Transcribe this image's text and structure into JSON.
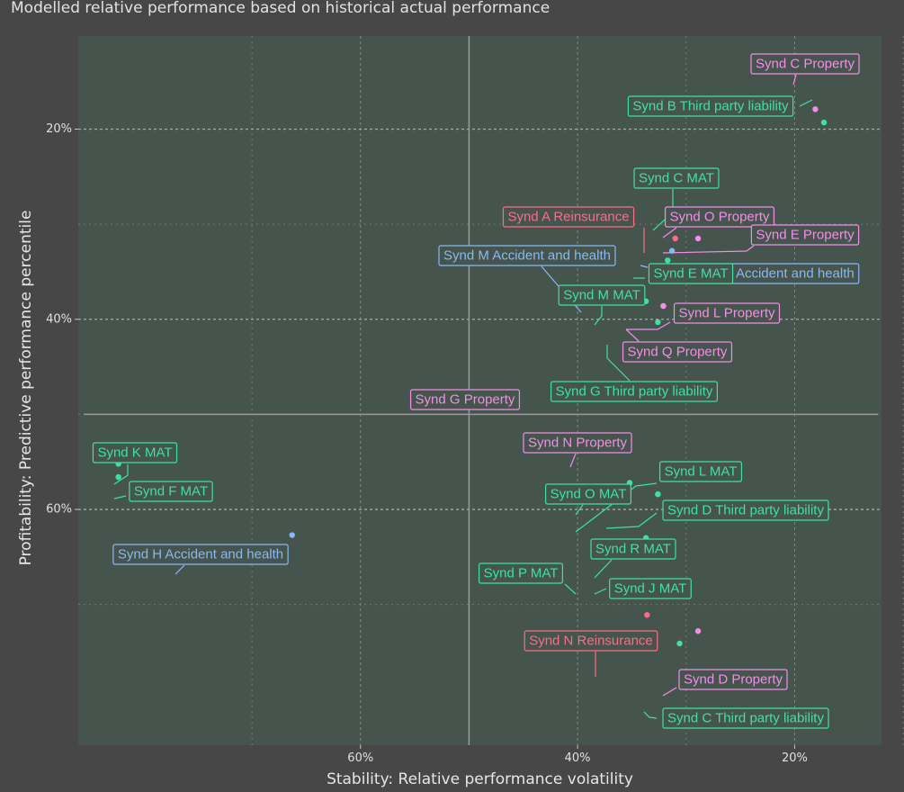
{
  "subtitle": "Modelled relative performance based on historical actual performance",
  "colors": {
    "background": "#474747",
    "panel": "#45554d",
    "grid": "#a9a9a9",
    "quadrant_line": "#9a9a9a",
    "MAT": "#3fe0a6",
    "Third party liability": "#3fe0a6",
    "Property": "#f28ee6",
    "Reinsurance": "#ff6b85",
    "Accident and health": "#8ab8f2"
  },
  "chart_data": {
    "type": "scatter",
    "title": "",
    "xlabel": "Stability: Relative performance volatility",
    "ylabel": "Profitability: Predictive performance percentile",
    "x_reversed": true,
    "y_reversed": true,
    "xlim": [
      86,
      12
    ],
    "ylim": [
      10.2,
      84.8
    ],
    "x_ticks": [
      60,
      40,
      20
    ],
    "x_tick_labels": [
      "60%",
      "40%",
      "20%"
    ],
    "y_ticks": [
      20,
      40,
      60
    ],
    "y_tick_labels": [
      "20%",
      "40%",
      "60%"
    ],
    "reference_lines": {
      "x": 50,
      "y": 50
    },
    "grid": "major dotted, minor dashed",
    "points": [
      {
        "label": "Synd C Property",
        "category": "Property",
        "x": 18.1,
        "y": 17.9
      },
      {
        "label": "Synd B Third party liability",
        "category": "Third party liability",
        "x": 17.3,
        "y": 19.3
      },
      {
        "label": "Synd C MAT",
        "category": "MAT",
        "x": 30.0,
        "y": 29.2
      },
      {
        "label": "Synd O Property",
        "category": "Property",
        "x": 28.9,
        "y": 29.7
      },
      {
        "label": "Synd A Reinsurance",
        "category": "Reinsurance",
        "x": 31.0,
        "y": 31.5
      },
      {
        "label": "Synd E Property",
        "category": "Property",
        "x": 28.9,
        "y": 31.5
      },
      {
        "label": "Synd M Accident and health",
        "category": "Accident and health",
        "x": 34.8,
        "y": 37.0
      },
      {
        "label": "Synd E Accident and health",
        "category": "Accident and health",
        "x": 31.3,
        "y": 32.8
      },
      {
        "label": "Synd E MAT",
        "category": "MAT",
        "x": 31.7,
        "y": 33.8
      },
      {
        "label": "Synd M MAT",
        "category": "MAT",
        "x": 33.7,
        "y": 38.1
      },
      {
        "label": "Synd L Property",
        "category": "Property",
        "x": 32.1,
        "y": 38.6
      },
      {
        "label": "Synd G Third party liability",
        "category": "Third party liability",
        "x": 32.6,
        "y": 40.3
      },
      {
        "label": "Synd Q Property",
        "category": "Property",
        "x": 32.1,
        "y": 38.6
      },
      {
        "label": "Synd G Property",
        "category": "Property",
        "x": 40.3,
        "y": 47.7
      },
      {
        "label": "Synd N Property",
        "category": "Property",
        "x": 35.8,
        "y": 53.3
      },
      {
        "label": "Synd K MAT",
        "category": "MAT",
        "x": 82.3,
        "y": 55.2
      },
      {
        "label": "Synd F MAT",
        "category": "MAT",
        "x": 82.3,
        "y": 56.6
      },
      {
        "label": "Synd L MAT",
        "category": "MAT",
        "x": 32.6,
        "y": 58.4
      },
      {
        "label": "Synd O MAT",
        "category": "MAT",
        "x": 35.2,
        "y": 57.2
      },
      {
        "label": "Synd D Third party liability",
        "category": "Third party liability",
        "x": 32.6,
        "y": 58.4
      },
      {
        "label": "Synd H Accident and health",
        "category": "Accident and health",
        "x": 66.3,
        "y": 62.7
      },
      {
        "label": "Synd R MAT",
        "category": "MAT",
        "x": 33.7,
        "y": 63.0
      },
      {
        "label": "Synd P MAT",
        "category": "MAT",
        "x": 35.2,
        "y": 64.6
      },
      {
        "label": "Synd J MAT",
        "category": "MAT",
        "x": 33.7,
        "y": 64.6
      },
      {
        "label": "Synd N Reinsurance",
        "category": "Reinsurance",
        "x": 33.6,
        "y": 71.1
      },
      {
        "label": "Synd D Property",
        "category": "Property",
        "x": 28.9,
        "y": 72.8
      },
      {
        "label": "Synd C Third party liability",
        "category": "Third party liability",
        "x": 30.6,
        "y": 74.1
      }
    ]
  }
}
